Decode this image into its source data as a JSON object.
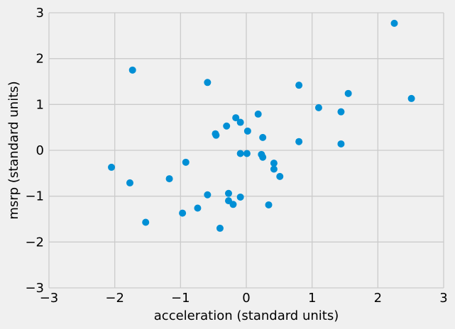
{
  "chart_data": {
    "type": "scatter",
    "xlabel": "acceleration (standard units)",
    "ylabel": "msrp (standard units)",
    "xlim": [
      -3,
      3
    ],
    "ylim": [
      -3,
      3
    ],
    "xticks": [
      -3,
      -2,
      -1,
      0,
      1,
      2,
      3
    ],
    "yticks": [
      -3,
      -2,
      -1,
      0,
      1,
      2,
      3
    ],
    "xtick_labels": [
      "−3",
      "−2",
      "−1",
      "0",
      "1",
      "2",
      "3"
    ],
    "ytick_labels": [
      "−3",
      "−2",
      "−1",
      "0",
      "1",
      "2",
      "3"
    ],
    "grid": true,
    "marker_color": "#008fd5",
    "background_color": "#f0f0f0",
    "grid_color": "#cbcbcb",
    "points": [
      [
        2.25,
        2.77
      ],
      [
        -1.73,
        1.75
      ],
      [
        -0.59,
        1.48
      ],
      [
        0.8,
        1.42
      ],
      [
        1.55,
        1.24
      ],
      [
        2.51,
        1.13
      ],
      [
        1.1,
        0.93
      ],
      [
        1.44,
        0.84
      ],
      [
        0.18,
        0.79
      ],
      [
        -0.16,
        0.71
      ],
      [
        -0.09,
        0.61
      ],
      [
        -0.3,
        0.53
      ],
      [
        0.02,
        0.42
      ],
      [
        -0.47,
        0.36
      ],
      [
        -0.46,
        0.33
      ],
      [
        0.25,
        0.28
      ],
      [
        0.8,
        0.19
      ],
      [
        1.44,
        0.14
      ],
      [
        -0.09,
        -0.07
      ],
      [
        0.01,
        -0.07
      ],
      [
        0.23,
        -0.09
      ],
      [
        0.25,
        -0.15
      ],
      [
        0.42,
        -0.28
      ],
      [
        -0.92,
        -0.26
      ],
      [
        -2.05,
        -0.37
      ],
      [
        0.42,
        -0.41
      ],
      [
        0.51,
        -0.57
      ],
      [
        -1.17,
        -0.62
      ],
      [
        -1.77,
        -0.71
      ],
      [
        -0.59,
        -0.97
      ],
      [
        -0.27,
        -0.94
      ],
      [
        -0.09,
        -1.02
      ],
      [
        -0.27,
        -1.1
      ],
      [
        -0.2,
        -1.18
      ],
      [
        0.34,
        -1.19
      ],
      [
        -0.74,
        -1.26
      ],
      [
        -0.97,
        -1.37
      ],
      [
        -1.53,
        -1.57
      ],
      [
        -0.4,
        -1.7
      ]
    ]
  }
}
